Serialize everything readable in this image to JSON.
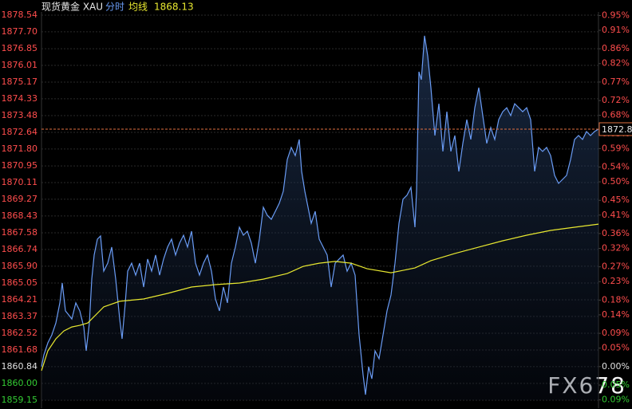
{
  "chart_data": {
    "type": "line",
    "title": "现货黄金 XAU",
    "average_price": 1868.13,
    "current_price": 1872.8,
    "watermark": "FX678",
    "grid": true,
    "up_color": "#ff4d4d",
    "down_color": "#33cc33",
    "flat_color": "#e0e0e0",
    "xlim": [
      0,
      698
    ],
    "ylim": [
      1859.15,
      1878.54
    ],
    "y2lim": [
      -0.091,
      0.951
    ],
    "yticks": [
      1878.54,
      {
        "value": 1877.7,
        "label": "1877.70"
      },
      1876.85,
      1876.01,
      1875.17,
      1874.33,
      1873.48,
      1872.64,
      {
        "value": 1871.8,
        "label": "1871.80"
      },
      1870.95,
      1870.11,
      1869.27,
      1868.43,
      1867.58,
      1866.74,
      {
        "value": 1865.9,
        "label": "1865.90"
      },
      1865.05,
      1864.21,
      1863.37,
      1862.52,
      1861.68,
      1860.84,
      {
        "value": 1860,
        "label": "1860.00"
      },
      1859.15
    ],
    "y2ticks": [
      {
        "value": 0.95,
        "label": "0.95%"
      },
      {
        "value": 0.91,
        "label": "0.91%"
      },
      {
        "value": 0.86,
        "label": "0.86%"
      },
      {
        "value": 0.82,
        "label": "0.82%"
      },
      {
        "value": 0.77,
        "label": "0.77%"
      },
      {
        "value": 0.72,
        "label": "0.72%"
      },
      {
        "value": 0.68,
        "label": "0.68%"
      },
      {
        "value": 0.63,
        "label": "0.63%"
      },
      {
        "value": 0.59,
        "label": "0.59%"
      },
      {
        "value": 0.54,
        "label": "0.54%"
      },
      {
        "value": 0.5,
        "label": "0.50%"
      },
      {
        "value": 0.45,
        "label": "0.45%"
      },
      {
        "value": 0.41,
        "label": "0.41%"
      },
      {
        "value": 0.36,
        "label": "0.36%"
      },
      {
        "value": 0.32,
        "label": "0.32%"
      },
      {
        "value": 0.27,
        "label": "0.27%"
      },
      {
        "value": 0.23,
        "label": "0.23%"
      },
      {
        "value": 0.18,
        "label": "0.18%"
      },
      {
        "value": 0.14,
        "label": "0.14%"
      },
      {
        "value": 0.09,
        "label": "0.09%"
      },
      {
        "value": 0.05,
        "label": "0.05%"
      },
      {
        "value": 0,
        "label": "0.00%"
      },
      {
        "value": -0.05,
        "label": "0.05%"
      },
      {
        "value": -0.09,
        "label": "0.09%"
      }
    ],
    "series": [
      {
        "name": "分时",
        "color": "#6a9cf5",
        "x": [
          0,
          3,
          8,
          13,
          18,
          23,
          26,
          30,
          34,
          38,
          43,
          48,
          53,
          56,
          60,
          63,
          66,
          70,
          74,
          78,
          83,
          88,
          93,
          98,
          101,
          105,
          108,
          113,
          118,
          123,
          128,
          133,
          138,
          143,
          148,
          153,
          158,
          163,
          168,
          173,
          178,
          183,
          188,
          193,
          198,
          203,
          208,
          213,
          218,
          223,
          228,
          233,
          238,
          243,
          248,
          253,
          258,
          263,
          268,
          273,
          278,
          283,
          288,
          293,
          298,
          303,
          308,
          313,
          318,
          323,
          326,
          330,
          334,
          338,
          343,
          348,
          353,
          358,
          363,
          368,
          373,
          378,
          383,
          388,
          393,
          398,
          403,
          406,
          410,
          414,
          418,
          423,
          428,
          433,
          438,
          443,
          448,
          453,
          458,
          463,
          468,
          470,
          473,
          476,
          480,
          484,
          488,
          493,
          498,
          503,
          508,
          513,
          518,
          523,
          528,
          533,
          538,
          543,
          548,
          553,
          558,
          563,
          568,
          573,
          578,
          583,
          588,
          593,
          598,
          603,
          608,
          613,
          618,
          623,
          628,
          633,
          638,
          643,
          648,
          653,
          658,
          663,
          668,
          673,
          678,
          683,
          688,
          693,
          698
        ],
        "values": [
          1860.84,
          1861.44,
          1862.04,
          1862.44,
          1863.04,
          1864.05,
          1865.05,
          1863.65,
          1863.45,
          1863.24,
          1864.05,
          1863.65,
          1862.84,
          1861.64,
          1863.04,
          1865.25,
          1866.46,
          1867.26,
          1867.42,
          1865.65,
          1866.05,
          1866.86,
          1865.25,
          1863.24,
          1862.24,
          1864.05,
          1865.65,
          1866.05,
          1865.45,
          1866.05,
          1864.85,
          1866.26,
          1865.65,
          1866.46,
          1865.45,
          1866.26,
          1866.86,
          1867.26,
          1866.46,
          1867.06,
          1867.46,
          1866.86,
          1867.66,
          1866.05,
          1865.45,
          1866.05,
          1866.46,
          1865.65,
          1864.25,
          1863.65,
          1864.85,
          1864.05,
          1866.05,
          1866.86,
          1867.86,
          1867.46,
          1867.66,
          1867.06,
          1866.05,
          1867.26,
          1868.87,
          1868.46,
          1868.26,
          1868.66,
          1869.07,
          1869.67,
          1871.27,
          1871.88,
          1871.47,
          1872.28,
          1870.67,
          1869.67,
          1868.87,
          1868.06,
          1868.66,
          1867.26,
          1866.86,
          1866.46,
          1864.85,
          1866.05,
          1866.26,
          1866.46,
          1865.65,
          1866.05,
          1865.45,
          1862.44,
          1860.43,
          1859.43,
          1860.84,
          1860.23,
          1861.64,
          1861.24,
          1862.44,
          1863.65,
          1864.45,
          1866.05,
          1868.06,
          1869.27,
          1869.47,
          1869.87,
          1867.86,
          1869.67,
          1875.69,
          1875.29,
          1877.5,
          1876.49,
          1874.89,
          1872.48,
          1874.08,
          1871.68,
          1873.68,
          1871.68,
          1872.48,
          1870.67,
          1872.08,
          1873.28,
          1872.28,
          1873.88,
          1874.89,
          1873.48,
          1872.08,
          1872.88,
          1872.28,
          1873.28,
          1873.68,
          1873.88,
          1873.48,
          1874.08,
          1873.88,
          1873.68,
          1873.88,
          1873.28,
          1870.67,
          1871.88,
          1871.68,
          1871.88,
          1871.47,
          1870.47,
          1870.07,
          1870.27,
          1870.47,
          1871.27,
          1872.28,
          1872.48,
          1872.28,
          1872.68,
          1872.48,
          1872.68,
          1872.8
        ]
      },
      {
        "name": "均线",
        "color": "#e8e830",
        "x": [
          0,
          8,
          18,
          28,
          38,
          48,
          58,
          78,
          98,
          128,
          158,
          188,
          218,
          248,
          278,
          308,
          328,
          348,
          368,
          388,
          408,
          438,
          468,
          488,
          518,
          548,
          578,
          608,
          638,
          668,
          698
        ],
        "values": [
          1860.64,
          1861.64,
          1862.24,
          1862.64,
          1862.84,
          1862.92,
          1863.04,
          1863.85,
          1864.13,
          1864.25,
          1864.53,
          1864.85,
          1864.97,
          1865.05,
          1865.25,
          1865.53,
          1865.89,
          1866.05,
          1866.14,
          1866.05,
          1865.77,
          1865.57,
          1865.81,
          1866.18,
          1866.54,
          1866.86,
          1867.18,
          1867.46,
          1867.7,
          1867.86,
          1868.02
        ]
      }
    ]
  }
}
